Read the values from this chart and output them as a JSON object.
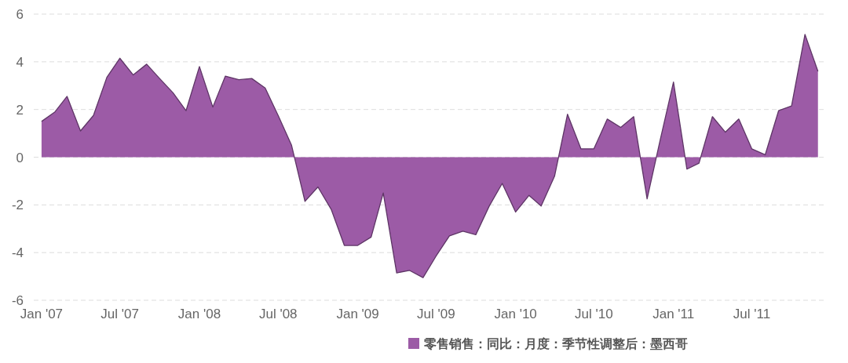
{
  "chart_data": {
    "type": "area",
    "x": [
      "2007-01",
      "2007-02",
      "2007-03",
      "2007-04",
      "2007-05",
      "2007-06",
      "2007-07",
      "2007-08",
      "2007-09",
      "2007-10",
      "2007-11",
      "2007-12",
      "2008-01",
      "2008-02",
      "2008-03",
      "2008-04",
      "2008-05",
      "2008-06",
      "2008-07",
      "2008-08",
      "2008-09",
      "2008-10",
      "2008-11",
      "2008-12",
      "2009-01",
      "2009-02",
      "2009-03",
      "2009-04",
      "2009-05",
      "2009-06",
      "2009-07",
      "2009-08",
      "2009-09",
      "2009-10",
      "2009-11",
      "2009-12",
      "2010-01",
      "2010-02",
      "2010-03",
      "2010-04",
      "2010-05",
      "2010-06",
      "2010-07",
      "2010-08",
      "2010-09",
      "2010-10",
      "2010-11",
      "2010-12",
      "2011-01",
      "2011-02",
      "2011-03",
      "2011-04",
      "2011-05",
      "2011-06",
      "2011-07",
      "2011-08",
      "2011-09",
      "2011-10",
      "2011-11",
      "2011-12"
    ],
    "series": [
      {
        "name": "零售销售：同比：月度：季节性调整后：墨西哥",
        "color": "#9c5ba6",
        "values": [
          1.5,
          1.9,
          2.55,
          1.1,
          1.75,
          3.35,
          4.15,
          3.45,
          3.9,
          3.3,
          2.7,
          1.95,
          3.8,
          2.1,
          3.4,
          3.25,
          3.3,
          2.9,
          1.75,
          0.5,
          -1.85,
          -1.25,
          -2.2,
          -3.7,
          -3.7,
          -3.35,
          -1.5,
          -4.85,
          -4.75,
          -5.05,
          -4.15,
          -3.3,
          -3.1,
          -3.25,
          -2.05,
          -1.1,
          -2.3,
          -1.6,
          -2.05,
          -0.8,
          1.8,
          0.35,
          0.35,
          1.6,
          1.25,
          1.7,
          -1.75,
          0.7,
          3.15,
          -0.5,
          -0.25,
          1.7,
          1.05,
          1.6,
          0.35,
          0.1,
          1.95,
          2.15,
          5.15,
          3.6
        ]
      }
    ],
    "xlim": [
      "2006-12-14",
      "2011-12-16"
    ],
    "xticks": [
      {
        "value": "2007-01",
        "label": "Jan '07"
      },
      {
        "value": "2007-07",
        "label": "Jul '07"
      },
      {
        "value": "2008-01",
        "label": "Jan '08"
      },
      {
        "value": "2008-07",
        "label": "Jul '08"
      },
      {
        "value": "2009-01",
        "label": "Jan '09"
      },
      {
        "value": "2009-07",
        "label": "Jul '09"
      },
      {
        "value": "2010-01",
        "label": "Jan '10"
      },
      {
        "value": "2010-07",
        "label": "Jul '10"
      },
      {
        "value": "2011-01",
        "label": "Jan '11"
      },
      {
        "value": "2011-07",
        "label": "Jul '11"
      }
    ],
    "ylim": [
      -6,
      6
    ],
    "yticks": [
      -6,
      -4,
      -2,
      0,
      2,
      4,
      6
    ],
    "grid": "y",
    "legend": "bottom"
  }
}
